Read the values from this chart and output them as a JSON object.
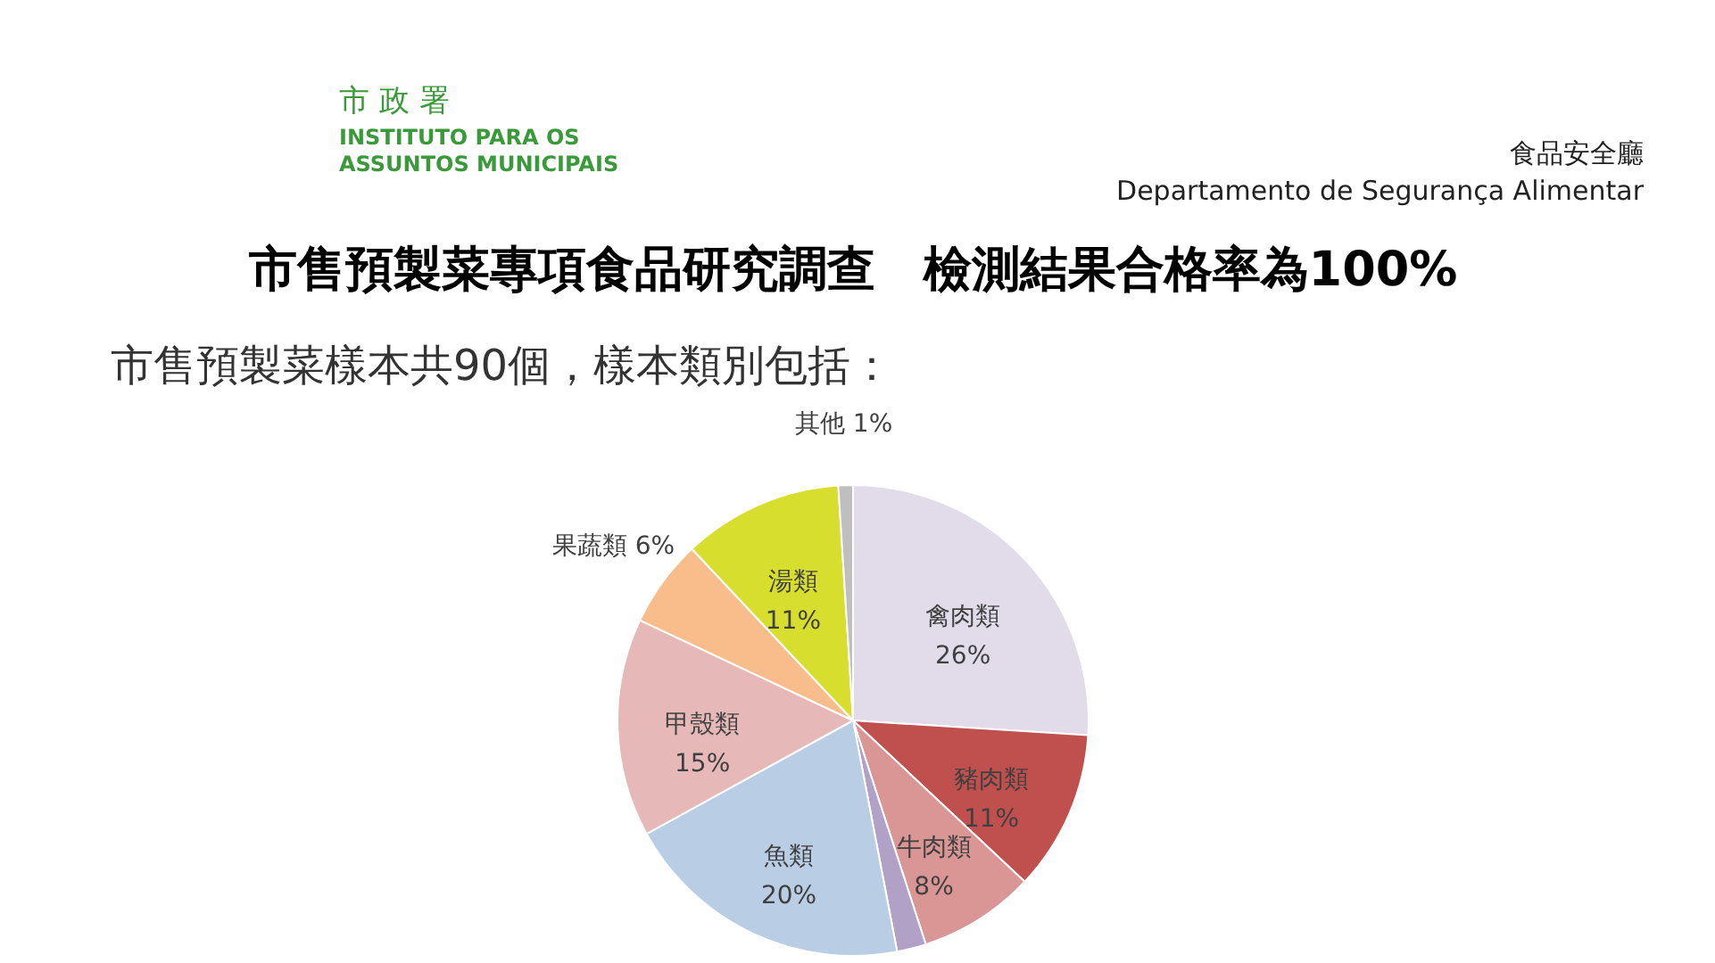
{
  "chart_data": {
    "type": "pie",
    "title": "市售預製菜專項食品研究調查　檢測結果合格率為100%",
    "subtitle": "市售預製菜樣本共90個，樣本類別包括：",
    "annotations": [
      "市 政 署",
      "INSTITUTO PARA OS",
      "ASSUNTOS MUNICIPAIS",
      "食品安全廳",
      "Departamento de Segurança Alimentar"
    ],
    "categories": [
      "禽肉類",
      "豬肉類",
      "牛肉類",
      null,
      "魚類",
      "甲殼類",
      "果蔬類",
      "湯類",
      "其他"
    ],
    "values": [
      26,
      11,
      8,
      2,
      20,
      15,
      6,
      11,
      1
    ],
    "colors": [
      "#e1dbea",
      "#c0504d",
      "#da9694",
      "#b2a1c7",
      "#b9cde5",
      "#e6b9b8",
      "#f8bd8a",
      "#d8de2e",
      "#bfbfbf"
    ],
    "value_labels": [
      "26%",
      "11%",
      "8%",
      null,
      "20%",
      "15%",
      "6%",
      "11%",
      "1%"
    ]
  }
}
